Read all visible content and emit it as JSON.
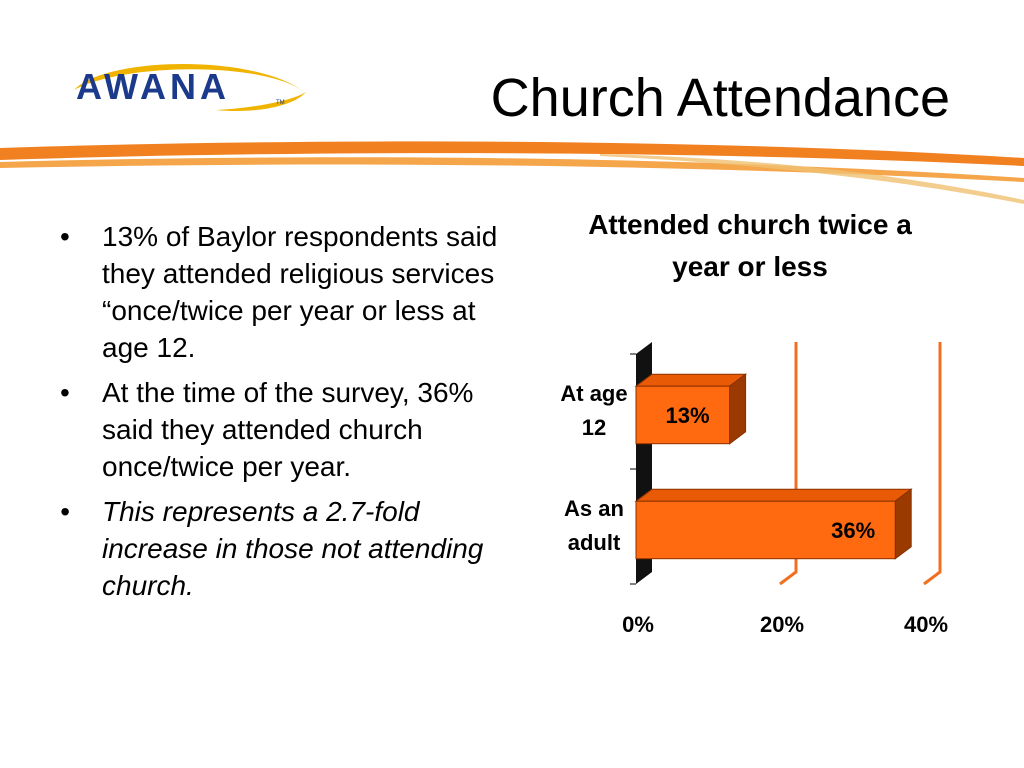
{
  "logo": {
    "text": "AWANA",
    "trademark": "TM"
  },
  "slide": {
    "title": "Church Attendance"
  },
  "bullets": [
    {
      "text": "13% of Baylor respondents said they attended religious services “once/twice per year or less at age 12.",
      "italic": false
    },
    {
      "text": "At the time of the survey, 36% said they attended church once/twice per year.",
      "italic": false
    },
    {
      "text": "This represents a 2.7-fold increase in those not attending church.",
      "italic": true
    }
  ],
  "colors": {
    "bar_front": "#ff6a10",
    "bar_top": "#e85a06",
    "bar_side": "#9a3a00",
    "bar_outline": "#8a3000",
    "axis_wall": "#111111",
    "gridline": "#f07020",
    "logo_text": "#1b3a8c",
    "logo_swoosh": "#f0b400",
    "swoosh_orange": "#f08020"
  },
  "chart_data": {
    "type": "bar",
    "orientation": "horizontal",
    "style": "3d",
    "title": "Attended church twice a year or less",
    "categories": [
      "At age 12",
      "As an adult"
    ],
    "values": [
      13,
      36
    ],
    "data_labels": [
      "13%",
      "36%"
    ],
    "xlim": [
      0,
      40
    ],
    "x_ticks": [
      0,
      20,
      40
    ],
    "x_tick_labels": [
      "0%",
      "20%",
      "40%"
    ],
    "grid": true,
    "legend": "none"
  }
}
